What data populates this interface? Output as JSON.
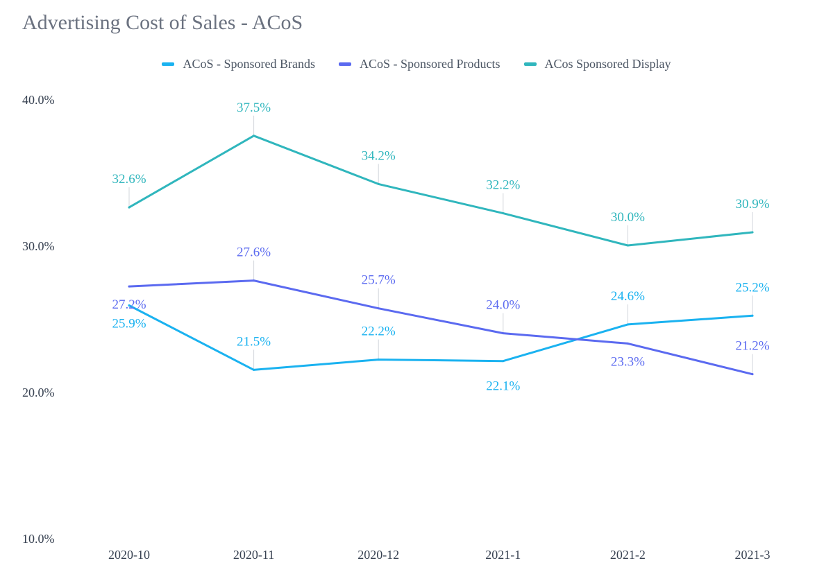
{
  "chart_data": {
    "type": "line",
    "title": "Advertising Cost of Sales - ACoS",
    "categories": [
      "2020-10",
      "2020-11",
      "2020-12",
      "2021-1",
      "2021-2",
      "2021-3"
    ],
    "ylim": [
      10,
      40
    ],
    "yticks": [
      {
        "value": 10,
        "label": "10.0%"
      },
      {
        "value": 20,
        "label": "20.0%"
      },
      {
        "value": 30,
        "label": "30.0%"
      },
      {
        "value": 40,
        "label": "40.0%"
      }
    ],
    "xlabel": "",
    "ylabel": "",
    "grid": false,
    "legend_position": "top-center",
    "series": [
      {
        "name": "ACoS - Sponsored Brands",
        "color": "#1ab2f0",
        "values": [
          25.9,
          21.5,
          22.2,
          22.1,
          24.6,
          25.2
        ],
        "labels": [
          "25.9%",
          "21.5%",
          "22.2%",
          "22.1%",
          "24.6%",
          "25.2%"
        ]
      },
      {
        "name": "ACoS - Sponsored Products",
        "color": "#5b6af0",
        "values": [
          27.2,
          27.6,
          25.7,
          24.0,
          23.3,
          21.2
        ],
        "labels": [
          "27.2%",
          "27.6%",
          "25.7%",
          "24.0%",
          "23.3%",
          "21.2%"
        ]
      },
      {
        "name": "ACos Sponsored Display",
        "color": "#30b6bd",
        "values": [
          32.6,
          37.5,
          34.2,
          32.2,
          30.0,
          30.9
        ],
        "labels": [
          "32.6%",
          "37.5%",
          "34.2%",
          "32.2%",
          "30.0%",
          "30.9%"
        ]
      }
    ]
  }
}
